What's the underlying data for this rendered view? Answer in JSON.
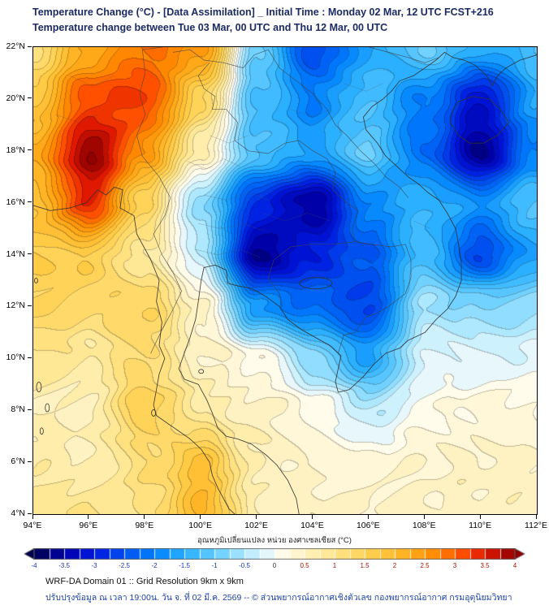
{
  "header": {
    "title_line1": "Temperature Change (°C) - [Data Assimilation] _ Initial Time : Monday 02 Mar, 12 UTC FCST+216",
    "title_line2": "Temperature change between Tue 03 Mar, 00 UTC and Thu 12 Mar, 00 UTC"
  },
  "map": {
    "x_ticks": [
      "94°E",
      "96°E",
      "98°E",
      "100°E",
      "102°E",
      "104°E",
      "106°E",
      "108°E",
      "110°E",
      "112°E"
    ],
    "y_ticks": [
      "22°N",
      "20°N",
      "18°N",
      "16°N",
      "14°N",
      "12°N",
      "10°N",
      "8°N",
      "6°N",
      "4°N"
    ]
  },
  "chart_data": {
    "type": "heatmap",
    "title": "Temperature Change (°C) - [Data Assimilation] _ Initial Time : Monday 02 Mar, 12 UTC FCST+216",
    "subtitle": "Temperature change between Tue 03 Mar, 00 UTC and Thu 12 Mar, 00 UTC",
    "lon_range": [
      94,
      112
    ],
    "lat_range": [
      4,
      22
    ],
    "lons": [
      94,
      96,
      98,
      100,
      102,
      104,
      106,
      108,
      110,
      112
    ],
    "lats": [
      22,
      20,
      18,
      16,
      14,
      12,
      10,
      8,
      6,
      4
    ],
    "values_c": [
      [
        1.2,
        2.2,
        2.8,
        2.6,
        -1.0,
        -2.6,
        -1.6,
        -1.0,
        -1.6,
        -1.2
      ],
      [
        1.8,
        3.2,
        3.2,
        1.5,
        -1.2,
        -2.0,
        -1.2,
        -2.0,
        -3.2,
        -1.6
      ],
      [
        2.2,
        4.0,
        2.6,
        0.6,
        -1.2,
        -1.6,
        -1.0,
        -2.2,
        -3.6,
        -2.0
      ],
      [
        1.8,
        3.4,
        1.4,
        -0.8,
        -2.8,
        -3.6,
        -2.0,
        -1.4,
        -1.8,
        -1.2
      ],
      [
        1.6,
        1.6,
        0.8,
        -0.4,
        -3.6,
        -3.0,
        -2.4,
        -1.2,
        -2.6,
        -1.6
      ],
      [
        1.5,
        1.2,
        1.4,
        0.5,
        -1.8,
        -2.2,
        -2.6,
        -0.6,
        -0.8,
        -0.6
      ],
      [
        1.0,
        0.8,
        1.2,
        0.5,
        0.2,
        -0.8,
        -1.6,
        -0.2,
        -0.2,
        -0.1
      ],
      [
        0.6,
        0.6,
        1.6,
        0.8,
        0.5,
        0.2,
        -0.4,
        0.1,
        0.3,
        0.2
      ],
      [
        0.7,
        0.6,
        1.2,
        1.8,
        0.6,
        0.4,
        0.2,
        0.4,
        0.5,
        0.4
      ],
      [
        0.9,
        1.0,
        1.0,
        2.0,
        0.6,
        0.5,
        0.4,
        0.5,
        0.5,
        0.5
      ]
    ],
    "contour_interval_c": 0.2,
    "colormap_stops": [
      [
        -4.0,
        "#00004d"
      ],
      [
        -3.5,
        "#0000a8"
      ],
      [
        -3.0,
        "#0018e0"
      ],
      [
        -2.5,
        "#0050f0"
      ],
      [
        -2.0,
        "#0080ff"
      ],
      [
        -1.5,
        "#2ab0ff"
      ],
      [
        -1.0,
        "#62ccff"
      ],
      [
        -0.6,
        "#9fe3ff"
      ],
      [
        -0.3,
        "#cdf1fd"
      ],
      [
        -0.05,
        "#eef9fb"
      ],
      [
        0.05,
        "#fffdf0"
      ],
      [
        0.3,
        "#fff7d8"
      ],
      [
        0.7,
        "#ffeeab"
      ],
      [
        1.2,
        "#ffde75"
      ],
      [
        1.7,
        "#ffcb45"
      ],
      [
        2.2,
        "#ffb01e"
      ],
      [
        2.7,
        "#ff8800"
      ],
      [
        3.1,
        "#ff5000"
      ],
      [
        3.5,
        "#e01800"
      ],
      [
        4.0,
        "#900000"
      ]
    ],
    "colorbar": {
      "label": "อุณหภูมิเปลี่ยนแปลง หน่วย องศาเซลเซียส (°C)",
      "min": -4,
      "max": 4,
      "tick_labels": [
        "-4",
        "-3.5",
        "-3",
        "-2.5",
        "-2",
        "-1.5",
        "-1",
        "-0.5",
        "0",
        "0.5",
        "1",
        "1.5",
        "2",
        "2.5",
        "3",
        "3.5",
        "4"
      ],
      "negative_label_color": "#1535b5",
      "positive_label_color": "#a51500",
      "zero_label_color": "#333333"
    },
    "legend_position": "bottom"
  },
  "footer": {
    "line1": "WRF-DA Domain 01 :: Grid Resolution 9km x 9km",
    "line2": "ปรับปรุงข้อมูล ณ เวลา 19:00น. วัน จ. ที่ 02 มี.ค. 2569 -- © ส่วนพยากรณ์อากาศเชิงตัวเลข กองพยากรณ์อากาศ กรมอุตุนิยมวิทยา"
  }
}
